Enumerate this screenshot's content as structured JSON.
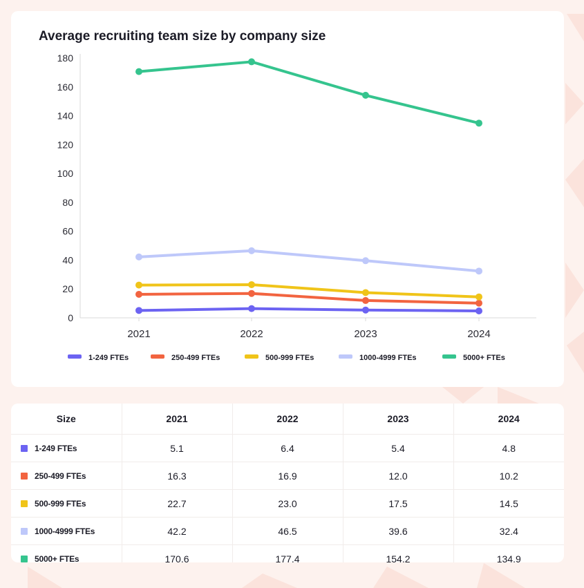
{
  "colors": {
    "s1": "#6c63f2",
    "s2": "#f26440",
    "s3": "#f0c419",
    "s4": "#bec8fa",
    "s5": "#35c48e"
  },
  "chart_data": {
    "type": "line",
    "title": "Average recruiting team size by company size",
    "x": [
      "2021",
      "2022",
      "2023",
      "2024"
    ],
    "ylim": [
      0,
      180
    ],
    "yticks": [
      0,
      20,
      40,
      60,
      80,
      100,
      120,
      140,
      160,
      180
    ],
    "grid": false,
    "legend_position": "bottom",
    "series": [
      {
        "name": "1-249 FTEs",
        "values": [
          5.1,
          6.4,
          5.4,
          4.8
        ]
      },
      {
        "name": "250-499 FTEs",
        "values": [
          16.3,
          16.9,
          12.0,
          10.2
        ]
      },
      {
        "name": "500-999 FTEs",
        "values": [
          22.7,
          23.0,
          17.5,
          14.5
        ]
      },
      {
        "name": "1000-4999 FTEs",
        "values": [
          42.2,
          46.5,
          39.6,
          32.4
        ]
      },
      {
        "name": "5000+ FTEs",
        "values": [
          170.6,
          177.4,
          154.2,
          134.9
        ]
      }
    ]
  },
  "table": {
    "headers": [
      "Size",
      "2021",
      "2022",
      "2023",
      "2024"
    ],
    "rows": [
      {
        "label": "1-249 FTEs",
        "values": [
          "5.1",
          "6.4",
          "5.4",
          "4.8"
        ]
      },
      {
        "label": "250-499 FTEs",
        "values": [
          "16.3",
          "16.9",
          "12.0",
          "10.2"
        ]
      },
      {
        "label": "500-999 FTEs",
        "values": [
          "22.7",
          "23.0",
          "17.5",
          "14.5"
        ]
      },
      {
        "label": "1000-4999 FTEs",
        "values": [
          "42.2",
          "46.5",
          "39.6",
          "32.4"
        ]
      },
      {
        "label": "5000+ FTEs",
        "values": [
          "170.6",
          "177.4",
          "154.2",
          "134.9"
        ]
      }
    ]
  }
}
